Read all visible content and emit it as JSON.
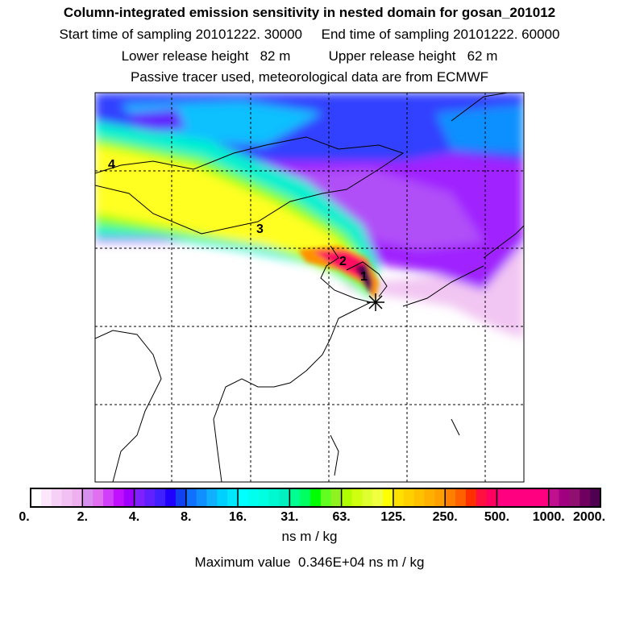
{
  "header": {
    "title": "Column-integrated emission sensitivity in nested domain for gosan_201012",
    "line2": "Start time of sampling 20101222. 30000     End time of sampling 20101222. 60000",
    "line3": "Lower release height   82 m          Upper release height   62 m",
    "line4": "Passive tracer used, meteorological data are from ECMWF"
  },
  "map": {
    "plume_labels": [
      "4",
      "3",
      "2",
      "1"
    ],
    "receptor_marker": "star-icon"
  },
  "colorbar": {
    "tick_labels": [
      "0.",
      "2.",
      "4.",
      "8.",
      "16.",
      "31.",
      "63.",
      "125.",
      "250.",
      "500.",
      "1000.",
      "2000."
    ],
    "segments": [
      [
        "#ffffff",
        "#fbe6fb",
        "#f7d0f7",
        "#f2c0f2",
        "#eeb0ee"
      ],
      [
        "#d890f0",
        "#e070f0",
        "#d040f8",
        "#c010ff",
        "#a000ff"
      ],
      [
        "#8020ff",
        "#6020ff",
        "#4020ff",
        "#2000ff",
        "#1040f0"
      ],
      [
        "#1070ff",
        "#1090ff",
        "#10b0ff",
        "#00d0ff",
        "#00e8ff"
      ],
      [
        "#00ffff",
        "#00ffee",
        "#00ffe0",
        "#00f8d0",
        "#00f0c0"
      ],
      [
        "#00ff90",
        "#00ff60",
        "#00ff00",
        "#60ff20",
        "#90f020"
      ],
      [
        "#b0ff00",
        "#d0ff10",
        "#e0ff30",
        "#f0ff40",
        "#ffff00"
      ],
      [
        "#ffe000",
        "#ffd000",
        "#ffc000",
        "#ffb000",
        "#ffa000"
      ],
      [
        "#ff8000",
        "#ff6000",
        "#ff3000",
        "#ff1040",
        "#ff0060"
      ],
      [
        "#ff0080",
        "#ff0080",
        "#ff0080",
        "#ff0080",
        "#ff0080"
      ],
      [
        "#c01090",
        "#a00080",
        "#901070",
        "#700060",
        "#500050"
      ]
    ],
    "unit": "ns m / kg",
    "max_value_text": "Maximum value  0.346E+04 ns m / kg"
  }
}
